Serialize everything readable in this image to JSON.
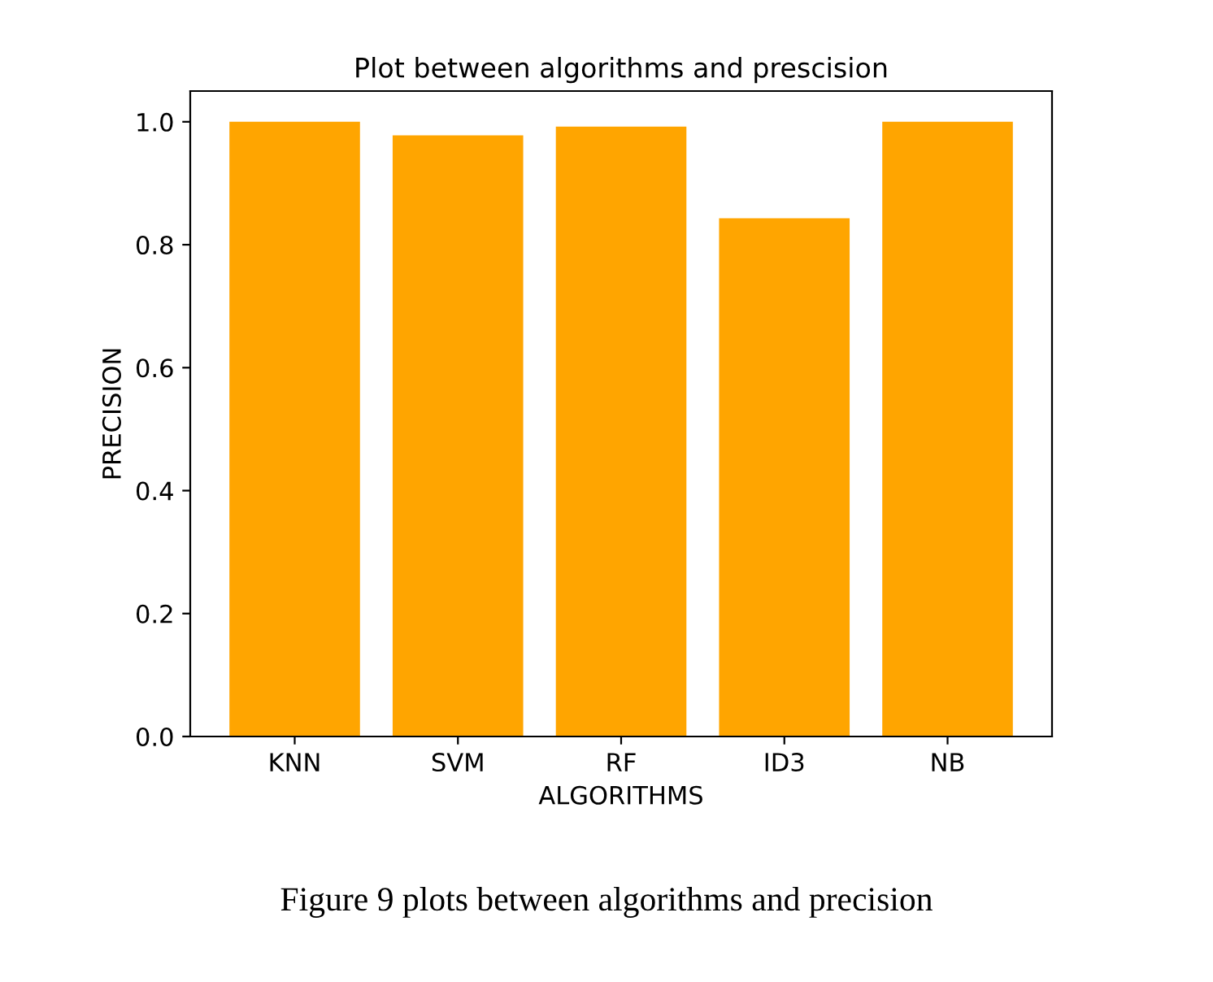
{
  "chart_data": {
    "type": "bar",
    "title": "Plot between algorithms and prescision",
    "xlabel": "ALGORITHMS",
    "ylabel": "PRECISION",
    "categories": [
      "KNN",
      "SVM",
      "RF",
      "ID3",
      "NB"
    ],
    "values": [
      1.0,
      0.978,
      0.992,
      0.843,
      1.0
    ],
    "color": "#ffa500",
    "ylim": [
      0,
      1.05
    ],
    "yticks": [
      {
        "value": 0,
        "label": "0.0"
      },
      {
        "value": 0.2,
        "label": "0.2"
      },
      {
        "value": 0.4,
        "label": "0.4"
      },
      {
        "value": 0.6,
        "label": "0.6"
      },
      {
        "value": 0.8,
        "label": "0.8"
      },
      {
        "value": 1.0,
        "label": "1.0"
      }
    ],
    "grid": false,
    "annotations": [
      "Figure 9 plots between algorithms and precision"
    ]
  }
}
